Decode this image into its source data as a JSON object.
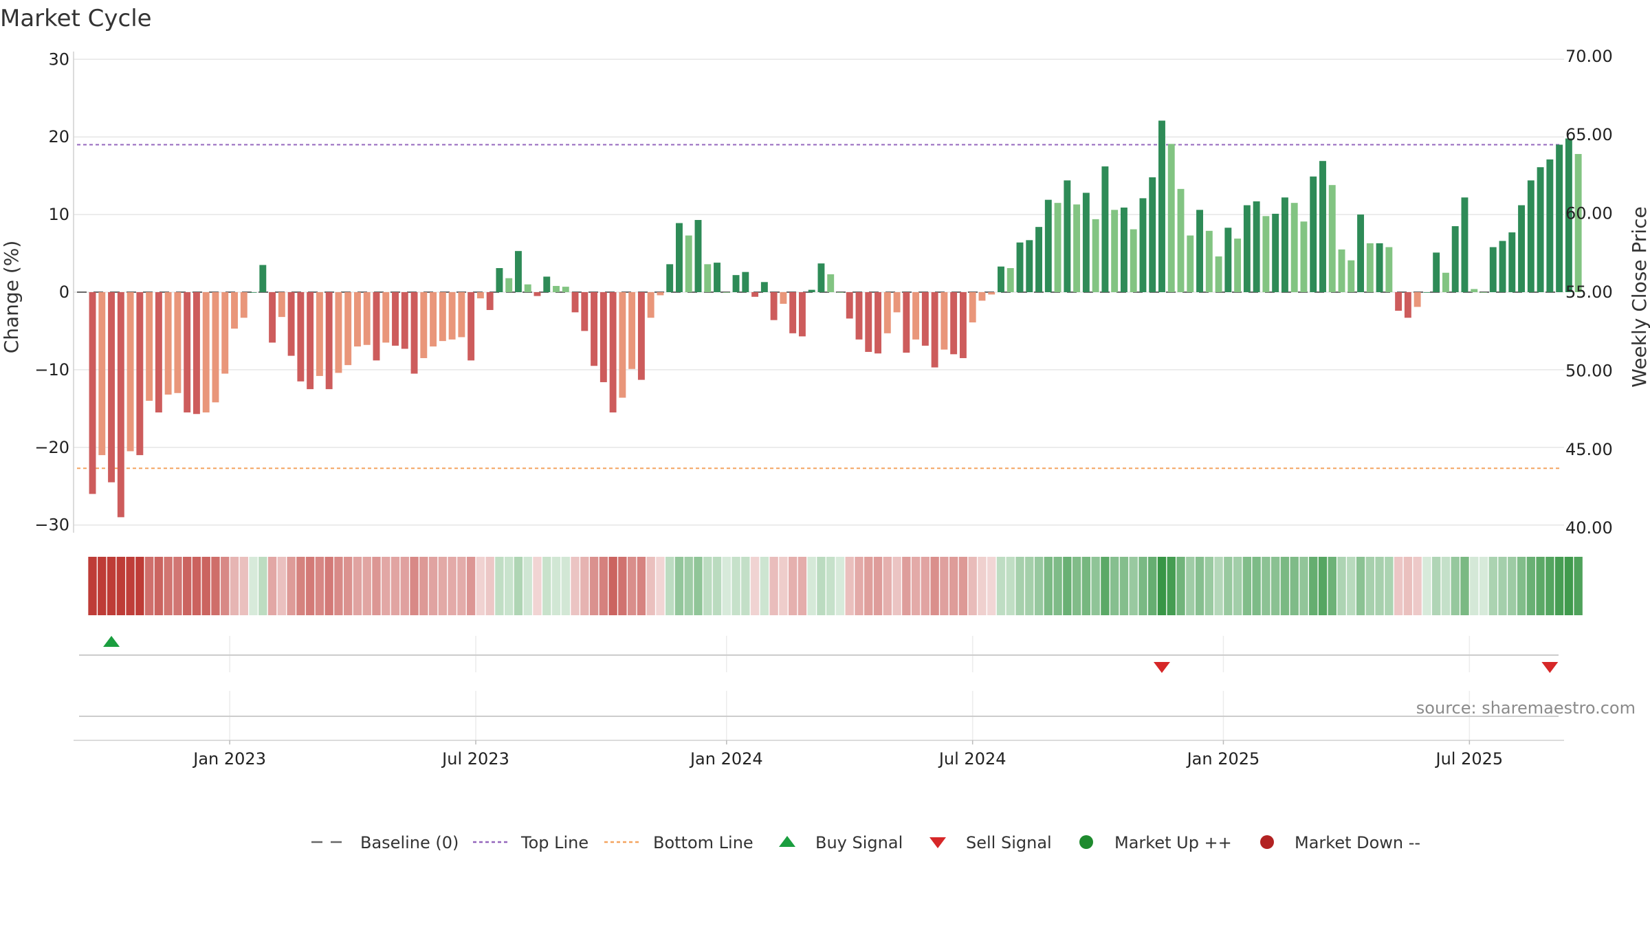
{
  "chart_data": {
    "type": "bar",
    "title": "Market Cycle",
    "ylabel": "Change (%)",
    "y2label": "Weekly Close Price",
    "ylim": [
      -31,
      31
    ],
    "y2lim": [
      39.7,
      70.3
    ],
    "yticks": [
      {
        "value": 30,
        "label": "30"
      },
      {
        "value": 20,
        "label": "20"
      },
      {
        "value": 10,
        "label": "10"
      },
      {
        "value": 0,
        "label": "0"
      },
      {
        "value": -10,
        "label": "−10"
      },
      {
        "value": -20,
        "label": "−20"
      },
      {
        "value": -30,
        "label": "−30"
      }
    ],
    "y2ticks": [
      {
        "value": 70,
        "label": "70.00"
      },
      {
        "value": 65,
        "label": "65.00"
      },
      {
        "value": 60,
        "label": "60.00"
      },
      {
        "value": 55,
        "label": "55.00"
      },
      {
        "value": 50,
        "label": "50.00"
      },
      {
        "value": 45,
        "label": "45.00"
      },
      {
        "value": 40,
        "label": "40.00"
      }
    ],
    "xrange_weeks": [
      -2,
      155.5
    ],
    "xticks": [
      {
        "week": 14.5,
        "label": "Jan 2023"
      },
      {
        "week": 40.5,
        "label": "Jul 2023"
      },
      {
        "week": 67,
        "label": "Jan 2024"
      },
      {
        "week": 93,
        "label": "Jul 2024"
      },
      {
        "week": 119.5,
        "label": "Jan 2025"
      },
      {
        "week": 145.5,
        "label": "Jul 2025"
      }
    ],
    "top_line": 19,
    "bottom_line": -22.7,
    "values": [
      -26,
      -21,
      -24.5,
      -29,
      -20.5,
      -21,
      -14,
      -15.5,
      -13.2,
      -13,
      -15.5,
      -15.7,
      -15.5,
      -14.2,
      -10.5,
      -4.7,
      -3.3,
      0,
      3.5,
      -6.5,
      -3.2,
      -8.2,
      -11.5,
      -12.5,
      -10.8,
      -12.5,
      -10.4,
      -9.4,
      -7,
      -6.8,
      -8.8,
      -6.5,
      -6.9,
      -7.3,
      -10.5,
      -8.5,
      -7,
      -6.3,
      -6.1,
      -5.8,
      -8.8,
      -0.8,
      -2.3,
      3.1,
      1.8,
      5.3,
      1,
      -0.5,
      2,
      0.8,
      0.7,
      -2.6,
      -5,
      -9.5,
      -11.6,
      -15.5,
      -13.6,
      -9.9,
      -11.3,
      -3.3,
      -0.4,
      3.6,
      8.9,
      7.3,
      9.3,
      3.6,
      3.8,
      0,
      2.2,
      2.6,
      -0.6,
      1.3,
      -3.6,
      -1.5,
      -5.3,
      -5.7,
      0.3,
      3.7,
      2.3,
      0,
      -3.4,
      -6.1,
      -7.7,
      -7.9,
      -5.3,
      -2.6,
      -7.8,
      -6.1,
      -6.9,
      -9.7,
      -7.4,
      -8,
      -8.5,
      -3.9,
      -1.1,
      -0.3,
      3.3,
      3.1,
      6.4,
      6.7,
      8.4,
      11.9,
      11.5,
      14.4,
      11.3,
      12.8,
      9.4,
      16.2,
      10.6,
      10.9,
      8.1,
      12.1,
      14.8,
      22.1,
      19.1,
      13.3,
      7.3,
      10.6,
      7.9,
      4.6,
      8.3,
      6.9,
      11.2,
      11.7,
      9.8,
      10.1,
      12.2,
      11.5,
      9.1,
      14.9,
      16.9,
      13.8,
      5.5,
      4.1,
      10,
      6.3,
      6.3,
      5.8,
      -2.4,
      -3.3,
      -1.9,
      0,
      5.1,
      2.5,
      8.5,
      12.2,
      0.4,
      0,
      5.8,
      6.6,
      7.7,
      11.2,
      14.4,
      16.1,
      17.1,
      19,
      19.8,
      17.8
    ],
    "buy_signals": [
      2
    ],
    "sell_signals": [
      113,
      154
    ],
    "colors": {
      "strong_up": "#2e8b57",
      "weak_up": "#82c482",
      "strong_down": "#cd5c5c",
      "weak_down": "#e9967a",
      "top_line": "#9467bd",
      "bottom_line": "#f4a460",
      "baseline": "#666666",
      "buy": "#1a9e3f",
      "sell": "#d62728",
      "market_up": "#1e8a2e",
      "market_down": "#b22222"
    },
    "legend": [
      {
        "key": "baseline",
        "label": "Baseline (0)"
      },
      {
        "key": "top",
        "label": "Top Line"
      },
      {
        "key": "bottom",
        "label": "Bottom Line"
      },
      {
        "key": "buy",
        "label": "Buy Signal"
      },
      {
        "key": "sell",
        "label": "Sell Signal"
      },
      {
        "key": "up",
        "label": "Market Up ++"
      },
      {
        "key": "down",
        "label": "Market Down --"
      }
    ],
    "source": "source: sharemaestro.com"
  }
}
